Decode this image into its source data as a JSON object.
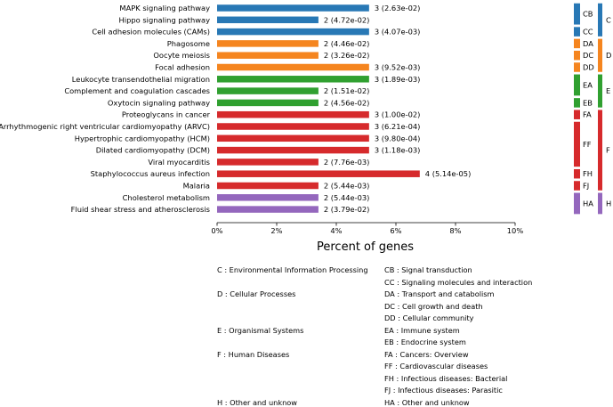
{
  "chart_data": {
    "type": "bar",
    "orientation": "horizontal",
    "xlabel": "Percent of genes",
    "xlim": [
      0,
      10
    ],
    "xticks": [
      "0%",
      "2%",
      "4%",
      "6%",
      "8%",
      "10%"
    ],
    "grid": false,
    "bars": [
      {
        "name": "MAPK signaling pathway",
        "value": 5.1,
        "label": "3 (2.63e-02)",
        "subclass": "CB",
        "class": "C"
      },
      {
        "name": "Hippo signaling pathway",
        "value": 3.4,
        "label": "2 (4.72e-02)",
        "subclass": "CB",
        "class": "C"
      },
      {
        "name": "Cell adhesion molecules (CAMs)",
        "value": 5.1,
        "label": "3 (4.07e-03)",
        "subclass": "CC",
        "class": "C"
      },
      {
        "name": "Phagosome",
        "value": 3.4,
        "label": "2 (4.46e-02)",
        "subclass": "DA",
        "class": "D"
      },
      {
        "name": "Oocyte meiosis",
        "value": 3.4,
        "label": "2 (3.26e-02)",
        "subclass": "DC",
        "class": "D"
      },
      {
        "name": "Focal adhesion",
        "value": 5.1,
        "label": "3 (9.52e-03)",
        "subclass": "DD",
        "class": "D"
      },
      {
        "name": "Leukocyte transendothelial migration",
        "value": 5.1,
        "label": "3 (1.89e-03)",
        "subclass": "EA",
        "class": "E"
      },
      {
        "name": "Complement and coagulation cascades",
        "value": 3.4,
        "label": "2 (1.51e-02)",
        "subclass": "EA",
        "class": "E"
      },
      {
        "name": "Oxytocin signaling pathway",
        "value": 3.4,
        "label": "2 (4.56e-02)",
        "subclass": "EB",
        "class": "E"
      },
      {
        "name": "Proteoglycans in cancer",
        "value": 5.1,
        "label": "3 (1.00e-02)",
        "subclass": "FA",
        "class": "F"
      },
      {
        "name": "Arrhythmogenic right ventricular cardiomyopathy (ARVC)",
        "value": 5.1,
        "label": "3 (6.21e-04)",
        "subclass": "FF",
        "class": "F"
      },
      {
        "name": "Hypertrophic cardiomyopathy (HCM)",
        "value": 5.1,
        "label": "3 (9.80e-04)",
        "subclass": "FF",
        "class": "F"
      },
      {
        "name": "Dilated cardiomyopathy (DCM)",
        "value": 5.1,
        "label": "3 (1.18e-03)",
        "subclass": "FF",
        "class": "F"
      },
      {
        "name": "Viral myocarditis",
        "value": 3.4,
        "label": "2 (7.76e-03)",
        "subclass": "FF",
        "class": "F"
      },
      {
        "name": "Staphylococcus aureus infection",
        "value": 6.8,
        "label": "4 (5.14e-05)",
        "subclass": "FH",
        "class": "F"
      },
      {
        "name": "Malaria",
        "value": 3.4,
        "label": "2 (5.44e-03)",
        "subclass": "FJ",
        "class": "F"
      },
      {
        "name": "Cholesterol metabolism",
        "value": 3.4,
        "label": "2 (5.44e-03)",
        "subclass": "HA",
        "class": "H"
      },
      {
        "name": "Fluid shear stress and atherosclerosis",
        "value": 3.4,
        "label": "2 (3.79e-02)",
        "subclass": "HA",
        "class": "H"
      }
    ],
    "class_colors": {
      "C": "#2878b5",
      "D": "#f5851f",
      "E": "#30a030",
      "F": "#d62a2c",
      "H": "#9467bd"
    },
    "subclass_groups": [
      {
        "code": "CB",
        "start": 0,
        "end": 1
      },
      {
        "code": "CC",
        "start": 2,
        "end": 2
      },
      {
        "code": "DA",
        "start": 3,
        "end": 3
      },
      {
        "code": "DC",
        "start": 4,
        "end": 4
      },
      {
        "code": "DD",
        "start": 5,
        "end": 5
      },
      {
        "code": "EA",
        "start": 6,
        "end": 7
      },
      {
        "code": "EB",
        "start": 8,
        "end": 8
      },
      {
        "code": "FA",
        "start": 9,
        "end": 9
      },
      {
        "code": "FF",
        "start": 10,
        "end": 13
      },
      {
        "code": "FH",
        "start": 14,
        "end": 14
      },
      {
        "code": "FJ",
        "start": 15,
        "end": 15
      },
      {
        "code": "HA",
        "start": 16,
        "end": 17
      }
    ],
    "class_groups": [
      {
        "code": "C",
        "start": 0,
        "end": 2
      },
      {
        "code": "D",
        "start": 3,
        "end": 5
      },
      {
        "code": "E",
        "start": 6,
        "end": 8
      },
      {
        "code": "F",
        "start": 9,
        "end": 15
      },
      {
        "code": "H",
        "start": 16,
        "end": 17
      }
    ]
  },
  "legend": [
    {
      "left": "C : Environmental Information Processing",
      "right": "CB : Signal transduction"
    },
    {
      "left": "",
      "right": "CC : Signaling molecules and interaction"
    },
    {
      "left": "D : Cellular Processes",
      "right": "DA : Transport and catabolism"
    },
    {
      "left": "",
      "right": "DC : Cell growth and death"
    },
    {
      "left": "",
      "right": "DD : Cellular community"
    },
    {
      "left": "E : Organismal Systems",
      "right": "EA : Immune system"
    },
    {
      "left": "",
      "right": "EB : Endocrine system"
    },
    {
      "left": "F : Human Diseases",
      "right": "FA : Cancers: Overview"
    },
    {
      "left": "",
      "right": "FF : Cardiovascular diseases"
    },
    {
      "left": "",
      "right": "FH : Infectious diseases: Bacterial"
    },
    {
      "left": "",
      "right": "FJ : Infectious diseases: Parasitic"
    },
    {
      "left": "H : Other and unknow",
      "right": "HA : Other and unknow"
    }
  ]
}
